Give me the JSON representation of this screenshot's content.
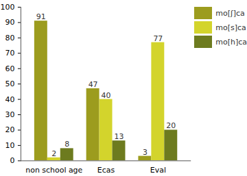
{
  "chart_data": {
    "type": "bar",
    "categories": [
      "non school age",
      "Ecas",
      "Eval"
    ],
    "series": [
      {
        "name": "mo[ʃ]ca",
        "color": "#9c9c1e",
        "values": [
          91,
          47,
          3
        ]
      },
      {
        "name": "mo[s]ca",
        "color": "#d3d42c",
        "values": [
          2,
          40,
          77
        ]
      },
      {
        "name": "mo[h]ca",
        "color": "#6d7b1f",
        "values": [
          8,
          13,
          20
        ]
      }
    ],
    "ylim": [
      0,
      100
    ],
    "yticks": [
      0,
      10,
      20,
      30,
      40,
      50,
      60,
      70,
      80,
      90,
      100
    ],
    "grid": false,
    "data_labels": true,
    "legend": "top-right"
  }
}
